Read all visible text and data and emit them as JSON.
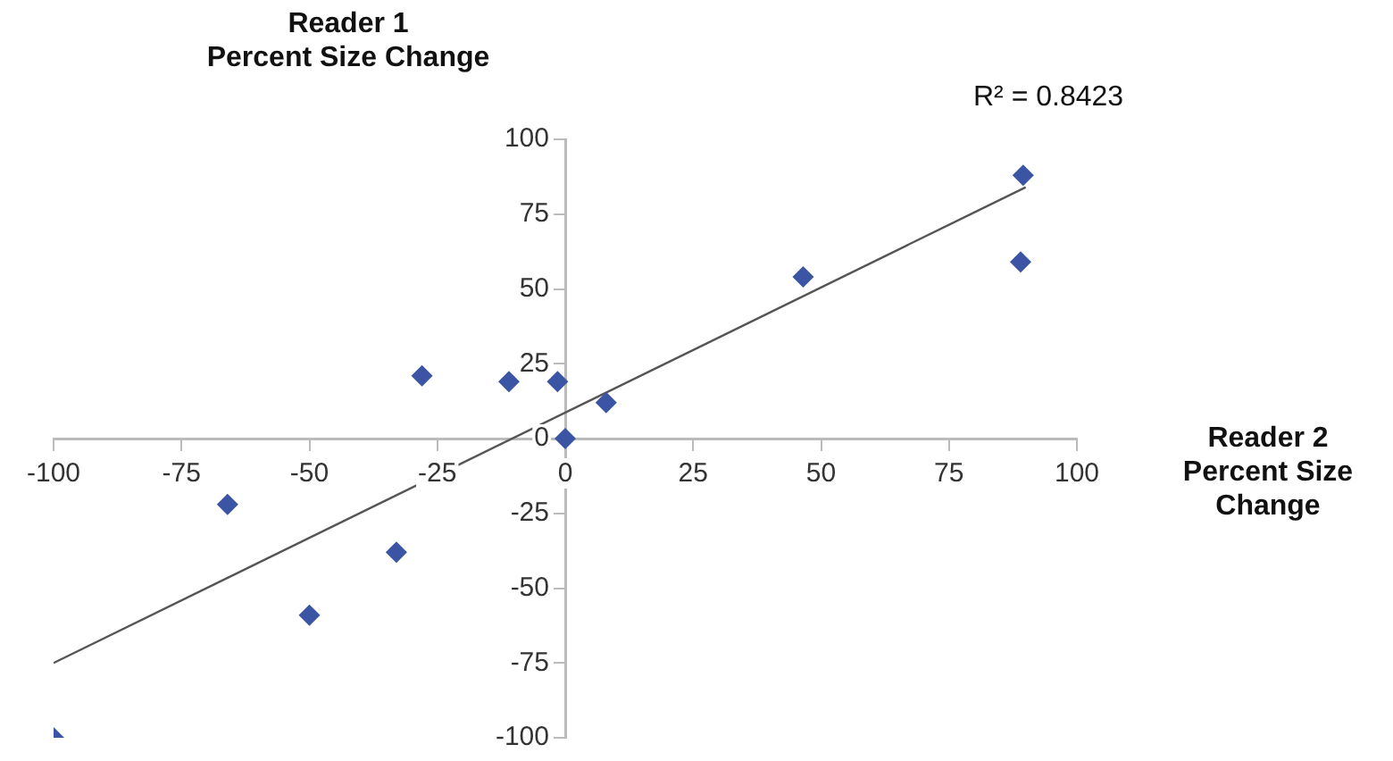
{
  "chart_data": {
    "type": "scatter",
    "xlabel": "Reader 2\nPercent Size\nChange",
    "ylabel": "Reader 1\nPercent Size Change",
    "annotations": [
      "R² = 0.8423"
    ],
    "xlim": [
      -100,
      100
    ],
    "ylim": [
      -100,
      100
    ],
    "xticks": [
      -100,
      -75,
      -50,
      -25,
      0,
      25,
      50,
      75,
      100
    ],
    "yticks": [
      -100,
      -75,
      -50,
      -25,
      0,
      25,
      50,
      75,
      100
    ],
    "grid": false,
    "series": [
      {
        "type": "scatter",
        "marker": "diamond",
        "color": "#3b54a4",
        "x": [
          -100,
          -66,
          -50,
          -33,
          -28,
          -11,
          -1.5,
          0,
          8,
          46.5,
          89.5,
          89
        ],
        "values": [
          -100,
          -22,
          -59,
          -38,
          21,
          19,
          19,
          0,
          12,
          54,
          88,
          59
        ]
      },
      {
        "type": "line",
        "color": "#555555",
        "x": [
          -100,
          90
        ],
        "values": [
          -75,
          84
        ]
      }
    ]
  }
}
